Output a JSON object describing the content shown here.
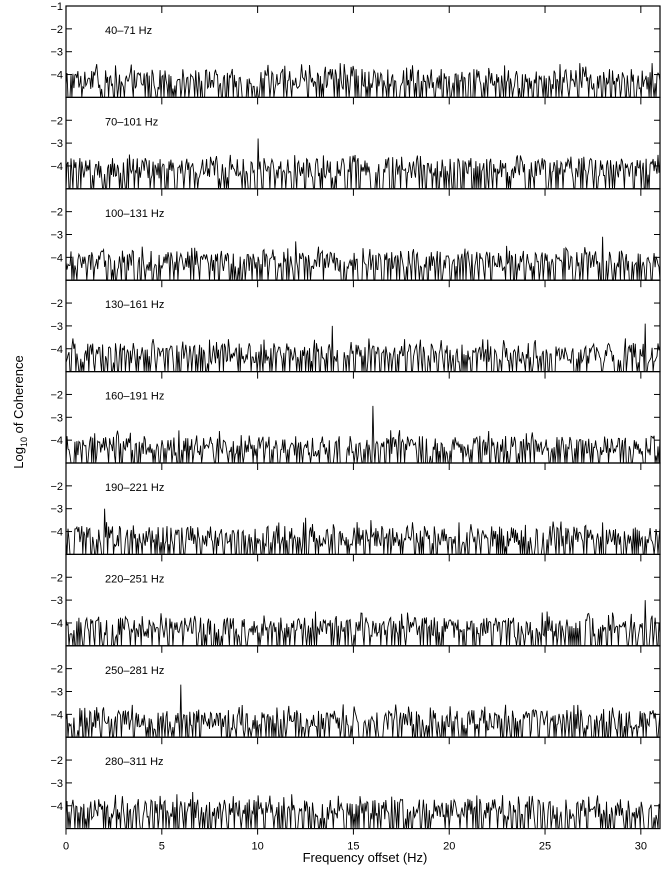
{
  "chart_data": {
    "type": "line",
    "xlabel": "Frequency offset (Hz)",
    "ylabel_prefix": "Log",
    "ylabel_subscript": "10",
    "ylabel_suffix": " of Coherence",
    "xlim": [
      0,
      31
    ],
    "ylim": [
      -5,
      -1
    ],
    "x_ticks": [
      0,
      5,
      10,
      15,
      20,
      25,
      30
    ],
    "x_tick_labels": [
      "0",
      "5",
      "10",
      "15",
      "20",
      "25",
      "30"
    ],
    "y_ticks": [
      -1,
      -2,
      -3,
      -4
    ],
    "y_tick_labels": [
      "−1",
      "−2",
      "−3",
      "−4"
    ],
    "line_color": "#000000",
    "grid": false,
    "panels": [
      {
        "label": "40–71 Hz",
        "baseline": -4.25,
        "spikes": [
          [
            2.6,
            -3.6
          ],
          [
            14.3,
            -3.5
          ],
          [
            22.9,
            -3.6
          ],
          [
            26.8,
            -3.5
          ],
          [
            30.6,
            -3.5
          ]
        ]
      },
      {
        "label": "70–101 Hz",
        "baseline": -4.15,
        "spikes": [
          [
            10.0,
            -2.8
          ],
          [
            3.3,
            -3.5
          ],
          [
            17.5,
            -3.6
          ],
          [
            27.0,
            -3.6
          ]
        ]
      },
      {
        "label": "100–131 Hz",
        "baseline": -4.2,
        "spikes": [
          [
            12.0,
            -3.3
          ],
          [
            23.0,
            -3.5
          ],
          [
            26.0,
            -3.6
          ],
          [
            28.0,
            -3.1
          ],
          [
            15.5,
            -3.6
          ]
        ]
      },
      {
        "label": "130–161 Hz",
        "baseline": -4.25,
        "spikes": [
          [
            13.9,
            -3.0
          ],
          [
            30.2,
            -2.9
          ],
          [
            7.5,
            -3.6
          ],
          [
            22.0,
            -3.6
          ]
        ]
      },
      {
        "label": "160–191 Hz",
        "baseline": -4.3,
        "spikes": [
          [
            16.0,
            -2.5
          ],
          [
            8.0,
            -3.6
          ],
          [
            24.0,
            -3.7
          ],
          [
            1.5,
            -3.7
          ]
        ]
      },
      {
        "label": "190–221 Hz",
        "baseline": -4.25,
        "spikes": [
          [
            2.0,
            -3.0
          ],
          [
            15.9,
            -3.5
          ],
          [
            12.5,
            -3.4
          ],
          [
            20.5,
            -3.6
          ],
          [
            28.0,
            -3.6
          ]
        ]
      },
      {
        "label": "220–251 Hz",
        "baseline": -4.25,
        "spikes": [
          [
            30.2,
            -3.0
          ],
          [
            25.1,
            -3.5
          ],
          [
            13.0,
            -3.5
          ],
          [
            17.5,
            -3.6
          ],
          [
            4.0,
            -3.7
          ]
        ]
      },
      {
        "label": "250–281 Hz",
        "baseline": -4.3,
        "spikes": [
          [
            6.0,
            -2.7
          ],
          [
            26.5,
            -3.6
          ],
          [
            11.0,
            -3.7
          ],
          [
            19.0,
            -3.7
          ]
        ]
      },
      {
        "label": "280–311 Hz",
        "baseline": -4.2,
        "spikes": [
          [
            6.6,
            -3.4
          ],
          [
            11.8,
            -3.5
          ],
          [
            5.8,
            -3.5
          ],
          [
            21.0,
            -3.7
          ],
          [
            27.3,
            -3.6
          ]
        ]
      }
    ]
  }
}
